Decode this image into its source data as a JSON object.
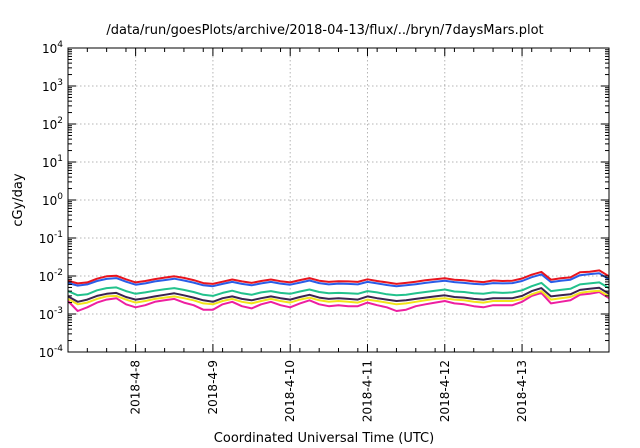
{
  "chart_data": {
    "type": "line",
    "title": "/data/run/goesPlots/archive/2018-04-13/flux/../bryn/7daysMars.plot",
    "xlabel": "Coordinated Universal Time (UTC)",
    "ylabel": "cGy/day",
    "y_scale": "log",
    "ylim": [
      0.0001,
      10000
    ],
    "y_ticks": [
      {
        "base": "10",
        "exp": "-4",
        "value": 0.0001
      },
      {
        "base": "10",
        "exp": "-3",
        "value": 0.001
      },
      {
        "base": "10",
        "exp": "-2",
        "value": 0.01
      },
      {
        "base": "10",
        "exp": "-1",
        "value": 0.1
      },
      {
        "base": "10",
        "exp": "0",
        "value": 1
      },
      {
        "base": "10",
        "exp": "1",
        "value": 10
      },
      {
        "base": "10",
        "exp": "2",
        "value": 100
      },
      {
        "base": "10",
        "exp": "3",
        "value": 1000
      },
      {
        "base": "10",
        "exp": "4",
        "value": 10000
      }
    ],
    "xlim": [
      "2018-04-07T03:00",
      "2018-04-14T03:00"
    ],
    "x_ticks": [
      "2018-4-8",
      "2018-4-9",
      "2018-4-10",
      "2018-4-11",
      "2018-4-12",
      "2018-4-13"
    ],
    "x_tick_dates": [
      "2018-04-08T00:00",
      "2018-04-09T00:00",
      "2018-04-10T00:00",
      "2018-04-11T00:00",
      "2018-04-12T00:00",
      "2018-04-13T00:00"
    ],
    "grid": true,
    "x": [
      "2018-04-07T03:00",
      "2018-04-07T06:00",
      "2018-04-07T09:00",
      "2018-04-07T12:00",
      "2018-04-07T15:00",
      "2018-04-07T18:00",
      "2018-04-07T21:00",
      "2018-04-08T00:00",
      "2018-04-08T03:00",
      "2018-04-08T06:00",
      "2018-04-08T09:00",
      "2018-04-08T12:00",
      "2018-04-08T15:00",
      "2018-04-08T18:00",
      "2018-04-08T21:00",
      "2018-04-09T00:00",
      "2018-04-09T03:00",
      "2018-04-09T06:00",
      "2018-04-09T09:00",
      "2018-04-09T12:00",
      "2018-04-09T15:00",
      "2018-04-09T18:00",
      "2018-04-09T21:00",
      "2018-04-10T00:00",
      "2018-04-10T03:00",
      "2018-04-10T06:00",
      "2018-04-10T09:00",
      "2018-04-10T12:00",
      "2018-04-10T15:00",
      "2018-04-10T18:00",
      "2018-04-10T21:00",
      "2018-04-11T00:00",
      "2018-04-11T03:00",
      "2018-04-11T06:00",
      "2018-04-11T09:00",
      "2018-04-11T12:00",
      "2018-04-11T15:00",
      "2018-04-11T18:00",
      "2018-04-11T21:00",
      "2018-04-12T00:00",
      "2018-04-12T03:00",
      "2018-04-12T06:00",
      "2018-04-12T09:00",
      "2018-04-12T12:00",
      "2018-04-12T15:00",
      "2018-04-12T18:00",
      "2018-04-12T21:00",
      "2018-04-13T00:00",
      "2018-04-13T03:00",
      "2018-04-13T06:00",
      "2018-04-13T09:00",
      "2018-04-13T12:00",
      "2018-04-13T15:00",
      "2018-04-13T18:00",
      "2018-04-13T21:00",
      "2018-04-14T00:00",
      "2018-04-14T03:00"
    ],
    "series": [
      {
        "color": "#e8141e",
        "values": [
          0.0075,
          0.0064,
          0.0068,
          0.0085,
          0.0098,
          0.0102,
          0.0082,
          0.0068,
          0.0074,
          0.0083,
          0.0091,
          0.0098,
          0.0089,
          0.0078,
          0.0065,
          0.0062,
          0.0071,
          0.0081,
          0.0072,
          0.0066,
          0.0074,
          0.0081,
          0.0073,
          0.0068,
          0.0078,
          0.0088,
          0.0075,
          0.007,
          0.0073,
          0.0072,
          0.007,
          0.0082,
          0.0074,
          0.0068,
          0.0062,
          0.0066,
          0.0071,
          0.0077,
          0.0082,
          0.0087,
          0.008,
          0.0077,
          0.0072,
          0.0069,
          0.0076,
          0.0074,
          0.0075,
          0.0086,
          0.0108,
          0.0128,
          0.008,
          0.0087,
          0.0092,
          0.0125,
          0.013,
          0.014,
          0.0098
        ]
      },
      {
        "color": "#2a5de8",
        "values": [
          0.0066,
          0.0056,
          0.006,
          0.0074,
          0.0084,
          0.0088,
          0.0071,
          0.0059,
          0.0064,
          0.0072,
          0.0078,
          0.0085,
          0.0076,
          0.0067,
          0.0057,
          0.0054,
          0.0062,
          0.007,
          0.0062,
          0.0057,
          0.0064,
          0.007,
          0.0063,
          0.0059,
          0.0067,
          0.0076,
          0.0065,
          0.006,
          0.0063,
          0.0062,
          0.006,
          0.007,
          0.0064,
          0.0058,
          0.0054,
          0.0057,
          0.0061,
          0.0066,
          0.0071,
          0.0075,
          0.0069,
          0.0066,
          0.0062,
          0.006,
          0.0065,
          0.0064,
          0.0065,
          0.0074,
          0.0093,
          0.011,
          0.0069,
          0.0075,
          0.008,
          0.0105,
          0.0112,
          0.0118,
          0.0082
        ]
      },
      {
        "color": "#22c28c",
        "values": [
          0.004,
          0.0031,
          0.0033,
          0.0042,
          0.0048,
          0.005,
          0.004,
          0.0034,
          0.0037,
          0.0041,
          0.0045,
          0.0048,
          0.0043,
          0.0038,
          0.0032,
          0.003,
          0.0036,
          0.0041,
          0.0035,
          0.0032,
          0.0037,
          0.004,
          0.0036,
          0.0034,
          0.0039,
          0.0044,
          0.0038,
          0.0035,
          0.0036,
          0.0035,
          0.0034,
          0.004,
          0.0037,
          0.0033,
          0.0031,
          0.0032,
          0.0035,
          0.0038,
          0.0041,
          0.0044,
          0.0039,
          0.0038,
          0.0035,
          0.0034,
          0.0037,
          0.0036,
          0.0037,
          0.0042,
          0.0054,
          0.0066,
          0.004,
          0.0043,
          0.0046,
          0.006,
          0.0064,
          0.0068,
          0.0048
        ]
      },
      {
        "color": "#3a2350",
        "values": [
          0.0029,
          0.0021,
          0.0024,
          0.003,
          0.0034,
          0.0036,
          0.0028,
          0.0024,
          0.0026,
          0.0029,
          0.0032,
          0.0035,
          0.0031,
          0.0027,
          0.0023,
          0.0021,
          0.0026,
          0.0029,
          0.0025,
          0.0023,
          0.0026,
          0.0029,
          0.0026,
          0.0024,
          0.0028,
          0.0032,
          0.0027,
          0.0025,
          0.0026,
          0.0025,
          0.0024,
          0.0029,
          0.0026,
          0.0024,
          0.0022,
          0.0023,
          0.0025,
          0.0027,
          0.0029,
          0.0031,
          0.0028,
          0.0027,
          0.0025,
          0.0024,
          0.0026,
          0.0026,
          0.0026,
          0.003,
          0.004,
          0.0048,
          0.0029,
          0.0031,
          0.0033,
          0.0043,
          0.0046,
          0.0049,
          0.0034
        ]
      },
      {
        "color": "#f2e41a",
        "values": [
          0.0025,
          0.0018,
          0.002,
          0.0025,
          0.0029,
          0.003,
          0.0024,
          0.002,
          0.0022,
          0.0025,
          0.0027,
          0.0029,
          0.0026,
          0.0023,
          0.0019,
          0.0018,
          0.0022,
          0.0025,
          0.0021,
          0.0019,
          0.0022,
          0.0025,
          0.0022,
          0.002,
          0.0024,
          0.0027,
          0.0023,
          0.0021,
          0.0022,
          0.0021,
          0.002,
          0.0024,
          0.0022,
          0.002,
          0.0018,
          0.0019,
          0.0021,
          0.0023,
          0.0025,
          0.0026,
          0.0024,
          0.0023,
          0.0021,
          0.002,
          0.0022,
          0.0022,
          0.0022,
          0.0025,
          0.0033,
          0.004,
          0.0024,
          0.0026,
          0.0028,
          0.0036,
          0.0039,
          0.0041,
          0.0029
        ]
      },
      {
        "color": "#ee1fa0",
        "values": [
          0.0022,
          0.0012,
          0.0015,
          0.002,
          0.0024,
          0.0026,
          0.0018,
          0.0015,
          0.0017,
          0.0021,
          0.0023,
          0.0025,
          0.002,
          0.0017,
          0.0013,
          0.0013,
          0.0018,
          0.0021,
          0.0016,
          0.0014,
          0.0018,
          0.0021,
          0.0017,
          0.0015,
          0.0019,
          0.0023,
          0.0018,
          0.0016,
          0.0017,
          0.0016,
          0.0016,
          0.002,
          0.0017,
          0.0015,
          0.0012,
          0.0013,
          0.0016,
          0.0018,
          0.002,
          0.0022,
          0.0019,
          0.0018,
          0.0016,
          0.0015,
          0.0017,
          0.0017,
          0.0017,
          0.0021,
          0.003,
          0.0036,
          0.0019,
          0.0021,
          0.0023,
          0.0032,
          0.0034,
          0.0038,
          0.0026
        ]
      }
    ]
  }
}
